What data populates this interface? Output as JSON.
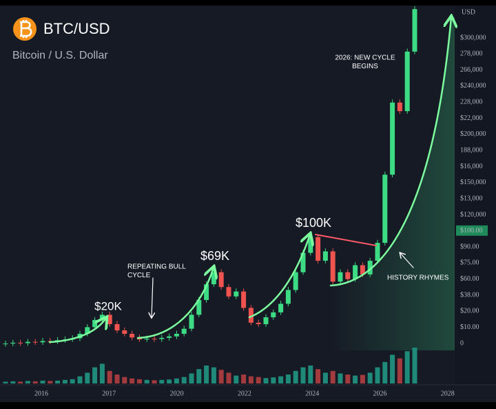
{
  "header": {
    "title": "BTC/USD",
    "subtitle": "Bitcoin / U.S. Dollar",
    "currency": "USD"
  },
  "chart_data": {
    "type": "candlestick",
    "log_scale": true,
    "ylim": [
      11700,
      8350000
    ],
    "up_color": "#3ddc84",
    "down_color": "#ef5350",
    "volume_up_color": "#1f8a7a",
    "volume_down_color": "#a33a3d",
    "open": [
      11900,
      12000,
      12200,
      12100,
      12400,
      12300,
      12600,
      12500,
      12800,
      13000,
      13300,
      14500,
      16500,
      19000,
      21000,
      17500,
      15500,
      14500,
      13500,
      13000,
      13200,
      13100,
      13400,
      13800,
      14500,
      16000,
      21000,
      28000,
      38000,
      48000,
      36000,
      30000,
      33000,
      24000,
      18000,
      17500,
      20000,
      22000,
      26000,
      34000,
      48000,
      70000,
      95000,
      60000,
      72000,
      40000,
      48000,
      42000,
      55000,
      46000,
      60000,
      85000,
      320000,
      1300000,
      1100000,
      3500000
    ],
    "high": [
      12700,
      12900,
      12900,
      13100,
      13100,
      13400,
      13400,
      13600,
      13800,
      14100,
      15400,
      17500,
      20100,
      22300,
      22300,
      18600,
      16400,
      15400,
      14300,
      14000,
      14000,
      14200,
      14600,
      15400,
      17000,
      22300,
      29700,
      40300,
      50900,
      50900,
      38200,
      35000,
      35000,
      25400,
      19100,
      21200,
      23300,
      27600,
      36000,
      50900,
      74200,
      100700,
      100700,
      76300,
      76300,
      50900,
      50900,
      58300,
      58300,
      63600,
      90100,
      339000,
      1380000,
      1380000,
      3710000,
      8480000
    ],
    "low": [
      11300,
      11400,
      11500,
      11500,
      11700,
      11700,
      11900,
      11900,
      12200,
      12400,
      12600,
      13800,
      15700,
      18100,
      16600,
      14700,
      13800,
      12800,
      12400,
      12400,
      12400,
      12400,
      12700,
      13100,
      13800,
      15200,
      20000,
      26600,
      36100,
      34200,
      28500,
      28500,
      22800,
      17100,
      16600,
      16600,
      19000,
      20900,
      24700,
      32300,
      45600,
      66500,
      57000,
      57000,
      38000,
      38000,
      39900,
      39900,
      43700,
      43700,
      57000,
      80800,
      304000,
      1045000,
      1045000,
      3325000
    ],
    "close": [
      12000,
      12200,
      12100,
      12400,
      12300,
      12600,
      12500,
      12800,
      13000,
      13300,
      14500,
      16500,
      19000,
      21000,
      17500,
      15500,
      14500,
      13500,
      13000,
      13200,
      13100,
      13400,
      13800,
      14500,
      16000,
      21000,
      28000,
      38000,
      48000,
      36000,
      30000,
      33000,
      24000,
      18000,
      17500,
      20000,
      22000,
      26000,
      34000,
      48000,
      70000,
      95000,
      60000,
      72000,
      40000,
      48000,
      42000,
      55000,
      46000,
      60000,
      85000,
      320000,
      1300000,
      1100000,
      3500000,
      8000000
    ],
    "volume": [
      5,
      6,
      5,
      7,
      6,
      8,
      7,
      8,
      10,
      12,
      20,
      30,
      45,
      55,
      35,
      25,
      18,
      14,
      12,
      10,
      9,
      10,
      11,
      14,
      18,
      28,
      40,
      50,
      45,
      38,
      30,
      22,
      25,
      20,
      18,
      15,
      17,
      20,
      25,
      35,
      45,
      50,
      40,
      30,
      35,
      28,
      25,
      22,
      24,
      30,
      45,
      60,
      80,
      70,
      90,
      100
    ],
    "volume_lim": [
      0,
      100
    ],
    "price_axis_labels": [
      "$300,000",
      "278,000",
      "266,000",
      "$240,000",
      "228,000",
      "$22,000",
      "$200,000",
      "188,000",
      "$16,000",
      "$150,000",
      "$13,000",
      "$120,000",
      "$100.00",
      "$90.00",
      "$75.00",
      "$60.00",
      "$38.00",
      "$20.00",
      "$10.00",
      "0"
    ],
    "highlight_index": 12,
    "x_axis_labels": [
      "2016",
      "2017",
      "2020",
      "2022",
      "2024",
      "2026",
      "2028"
    ],
    "annotations": [
      {
        "lines": [
          "$20K"
        ]
      },
      {
        "lines": [
          "REPEATING BULL",
          "CYCLE"
        ]
      },
      {
        "lines": [
          "$69K"
        ]
      },
      {
        "lines": [
          "$100K"
        ]
      },
      {
        "lines": [
          "2026: NEW CYCLE",
          "BEGINS"
        ]
      },
      {
        "lines": [
          "HISTORY RHYMES"
        ]
      }
    ]
  }
}
